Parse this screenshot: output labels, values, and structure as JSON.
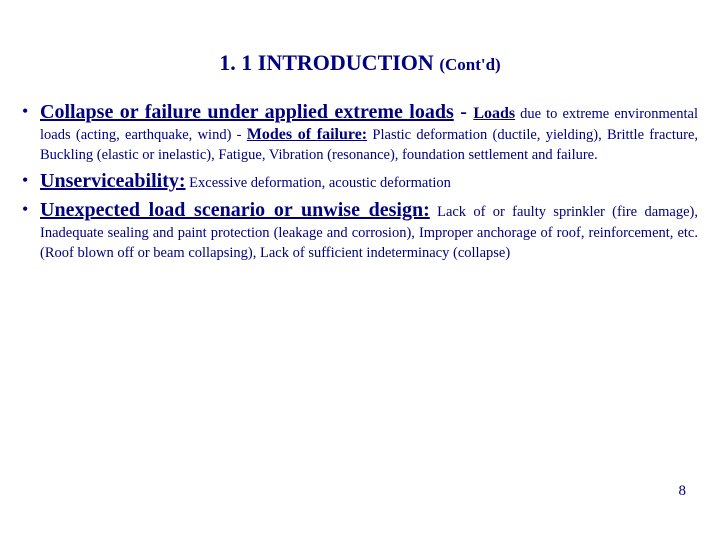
{
  "colors": {
    "text": "#000080",
    "background": "#ffffff"
  },
  "typography": {
    "font_family": "Times New Roman",
    "title_main_size_pt": 22,
    "title_sub_size_pt": 17,
    "lead_underline_size_pt": 20,
    "lead_underline_small_size_pt": 16,
    "body_size_pt": 14.5,
    "pagenum_size_pt": 15
  },
  "title": {
    "main": "1. 1 INTRODUCTION ",
    "sub": "(Cont'd)"
  },
  "bullets": [
    {
      "lead": "Collapse or failure under applied extreme loads",
      "dash1": " - ",
      "sub_lead1": "Loads",
      "after_sub_lead1": " due to extreme environmental loads (acting, earthquake, wind) - ",
      "sub_lead2": "Modes of failure:",
      "after_sub_lead2": " Plastic deformation (ductile, yielding), Brittle fracture, Buckling (elastic or inelastic), Fatigue, Vibration (resonance), foundation settlement and failure."
    },
    {
      "lead": "Unserviceability:",
      "body": " Excessive deformation, acoustic deformation"
    },
    {
      "lead": "Unexpected load scenario or unwise design:",
      "body": " Lack of or faulty sprinkler (fire damage), Inadequate sealing and paint protection (leakage and corrosion), Improper anchorage of roof, reinforcement, etc. (Roof blown off or beam collapsing), Lack of sufficient indeterminacy (collapse)"
    }
  ],
  "page_number": "8"
}
